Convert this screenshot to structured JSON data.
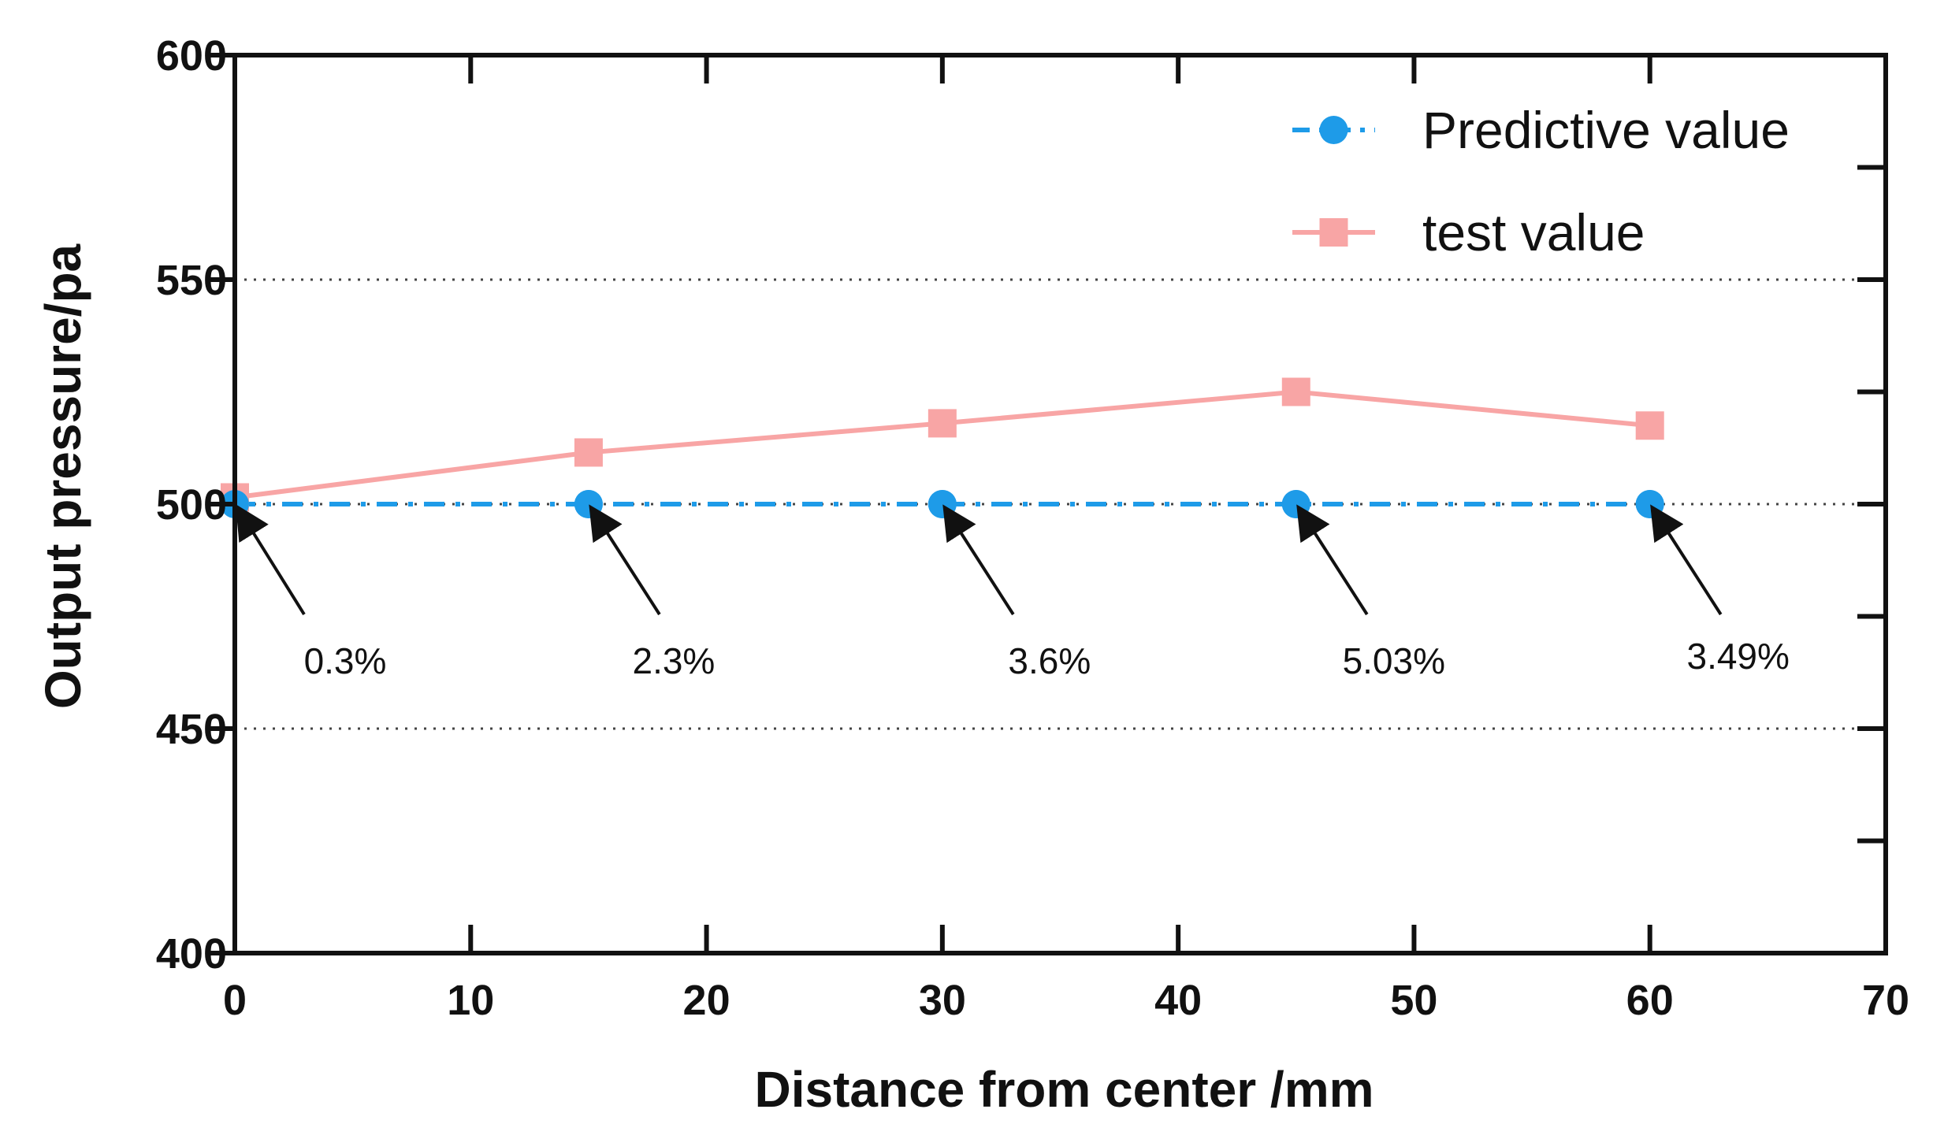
{
  "chart_data": {
    "type": "line",
    "title": "",
    "xlabel": "Distance from center /mm",
    "ylabel": "Output pressure/pa",
    "xlim": [
      0,
      70
    ],
    "ylim": [
      400,
      600
    ],
    "xticks": [
      "0",
      "10",
      "20",
      "30",
      "40",
      "50",
      "60",
      "70"
    ],
    "yticks": [
      "400",
      "450",
      "500",
      "550",
      "600"
    ],
    "grid": "dotted horizontal at 450, 500, 550",
    "legend_position": "top-right",
    "x": [
      0,
      15,
      30,
      45,
      60
    ],
    "series": [
      {
        "name": "Predictive value",
        "values": [
          500,
          500,
          500,
          500,
          500
        ],
        "color": "#1e9be8",
        "marker": "circle",
        "line_style": "dash-dot"
      },
      {
        "name": "test value",
        "values": [
          501.5,
          511.5,
          518,
          525,
          517.5
        ],
        "color": "#f8a5a5",
        "marker": "square",
        "line_style": "solid"
      }
    ],
    "annotations": [
      {
        "text": "0.3%",
        "x": 0
      },
      {
        "text": "2.3%",
        "x": 15
      },
      {
        "text": "3.6%",
        "x": 30
      },
      {
        "text": "5.03%",
        "x": 45
      },
      {
        "text": "3.49%",
        "x": 60
      }
    ]
  }
}
